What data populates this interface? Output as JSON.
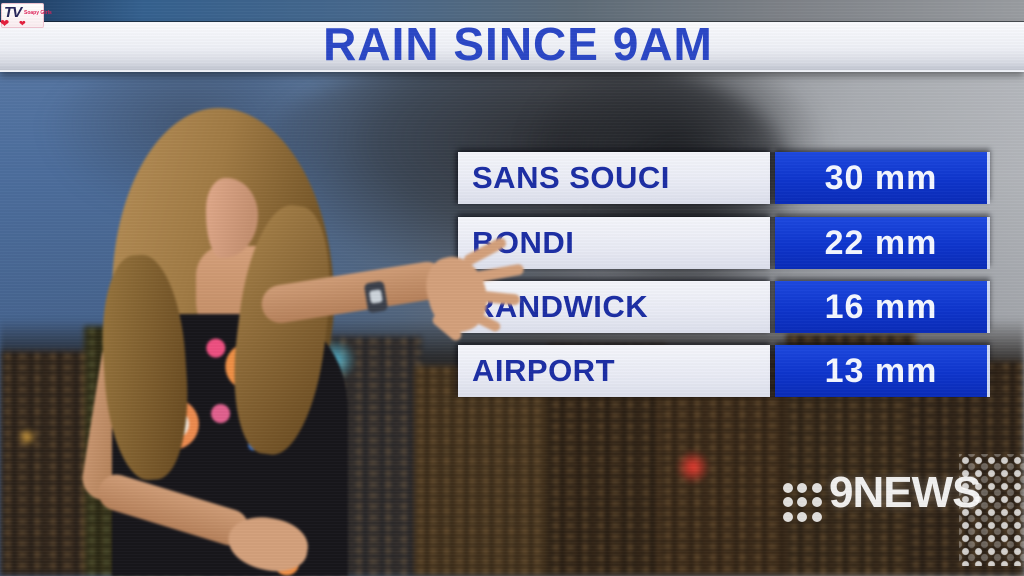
{
  "broadcast": {
    "title": "RAIN SINCE 9AM",
    "channel_brand": "9NEWS"
  },
  "watermark": {
    "main": "TV",
    "sub": "Soapy Girls",
    "heart_icon": "❤"
  },
  "rain_table": {
    "rows": [
      {
        "location": "SANS SOUCI",
        "amount": "30 mm"
      },
      {
        "location": "BONDI",
        "amount": "22 mm"
      },
      {
        "location": "RANDWICK",
        "amount": "16 mm"
      },
      {
        "location": "AIRPORT",
        "amount": "13 mm"
      }
    ]
  },
  "chart_data": {
    "type": "table",
    "title": "RAIN SINCE 9AM",
    "categories": [
      "SANS SOUCI",
      "BONDI",
      "RANDWICK",
      "AIRPORT"
    ],
    "values": [
      30,
      22,
      16,
      13
    ],
    "unit": "mm"
  },
  "colors": {
    "title_blue": "#2b47c6",
    "label_text_blue": "#1c2ea4",
    "value_cell_blue": "#0e35cd",
    "value_text": "#f4f7ff",
    "banner_bg": "#eef0f6"
  },
  "icons": {
    "nine_dots_logo": "3x3-dot-grid",
    "dot_grid_pattern": "dot-matrix",
    "heart": "❤"
  }
}
